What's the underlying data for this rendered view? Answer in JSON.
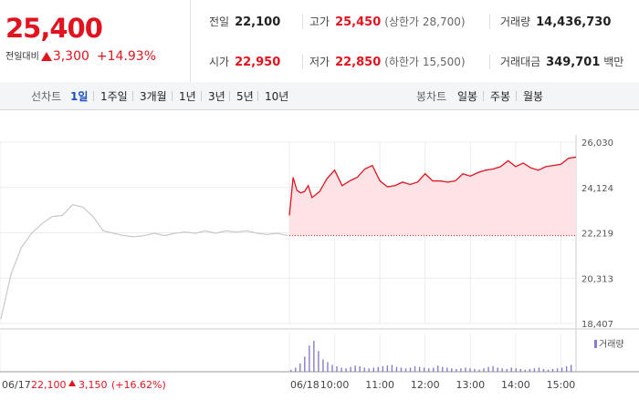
{
  "header": {
    "price": "25,400",
    "change_label": "전일대비",
    "change_value": "3,300",
    "change_pct": "+14.93%",
    "stats": {
      "prev_close_label": "전일",
      "prev_close": "22,100",
      "high_label": "고가",
      "high": "25,450",
      "upper_limit": "(상한가 28,700)",
      "volume_label": "거래량",
      "volume": "14,436,730",
      "open_label": "시가",
      "open": "22,950",
      "low_label": "저가",
      "low": "22,850",
      "lower_limit": "(하한가 15,500)",
      "value_label": "거래대금",
      "value": "349,701",
      "value_unit": "백만"
    }
  },
  "tabs": {
    "line_label": "선차트",
    "line_ranges": [
      "1일",
      "1주일",
      "3개월",
      "1년",
      "3년",
      "5년",
      "10년"
    ],
    "active": "1일",
    "candle_label": "봉차트",
    "candle_ranges": [
      "일봉",
      "주봉",
      "월봉"
    ]
  },
  "colors": {
    "up": "#e0131f",
    "up_fill": "#fde3e5",
    "prev_line": "#c8c8c8",
    "volume": "#8c7cc6"
  },
  "chart_data": {
    "type": "line",
    "y_ticks": [
      "26,030",
      "24,124",
      "22,219",
      "20,313",
      "18,407"
    ],
    "ylim": [
      18407,
      26030
    ],
    "reference_value": 22100,
    "grid": true,
    "x_labels": [
      "06/18",
      "10:00",
      "11:00",
      "12:00",
      "13:00",
      "14:00",
      "15:00"
    ],
    "prev_day_x_label": "06/17",
    "prev_day_close": "22,100",
    "prev_day_change": "3,150",
    "prev_day_change_pct": "(+16.62%)",
    "volume_legend": "거래량",
    "series": [
      {
        "x": [
          "09:00",
          "09:05",
          "09:10",
          "09:15",
          "09:20",
          "09:25",
          "09:30",
          "09:40",
          "09:50",
          "10:00",
          "10:10",
          "10:20",
          "10:30",
          "10:40",
          "10:50",
          "11:00",
          "11:10",
          "11:20",
          "11:30",
          "11:40",
          "11:50",
          "12:00",
          "12:10",
          "12:20",
          "12:30",
          "12:40",
          "12:50",
          "13:00",
          "13:10",
          "13:20",
          "13:30",
          "13:40",
          "13:50",
          "14:00",
          "14:10",
          "14:20",
          "14:30",
          "14:40",
          "14:50",
          "15:00",
          "15:10",
          "15:20"
        ],
        "values": [
          22950,
          24550,
          24000,
          23900,
          23950,
          24200,
          23700,
          23950,
          24500,
          24850,
          24200,
          24400,
          24550,
          24900,
          25050,
          24400,
          24150,
          24200,
          24350,
          24250,
          24350,
          24700,
          24400,
          24400,
          24350,
          24400,
          24700,
          24600,
          24750,
          24850,
          24900,
          25000,
          25250,
          25000,
          25150,
          24950,
          24850,
          25000,
          25050,
          25100,
          25350,
          25400
        ]
      }
    ],
    "prev_day_values": [
      18600,
      20500,
      21600,
      22200,
      22600,
      22900,
      22950,
      23400,
      23300,
      22900,
      22300,
      22200,
      22100,
      22050,
      22100,
      22200,
      22100,
      22200,
      22250,
      22200,
      22300,
      22200,
      22300,
      22250,
      22300,
      22200,
      22150,
      22200,
      22100
    ],
    "volume_values": [
      3,
      6,
      12,
      22,
      38,
      45,
      30,
      18,
      14,
      10,
      8,
      6,
      5,
      7,
      9,
      8,
      6,
      5,
      6,
      7,
      8,
      9,
      10,
      7,
      6,
      5,
      6,
      8,
      7,
      6,
      5,
      6,
      9,
      7,
      6,
      5,
      4,
      5,
      6,
      5,
      4,
      3,
      5,
      7,
      8,
      6,
      5,
      4,
      6,
      5,
      4,
      3,
      4,
      5,
      6,
      4,
      3,
      4,
      5,
      6,
      8,
      10
    ]
  }
}
